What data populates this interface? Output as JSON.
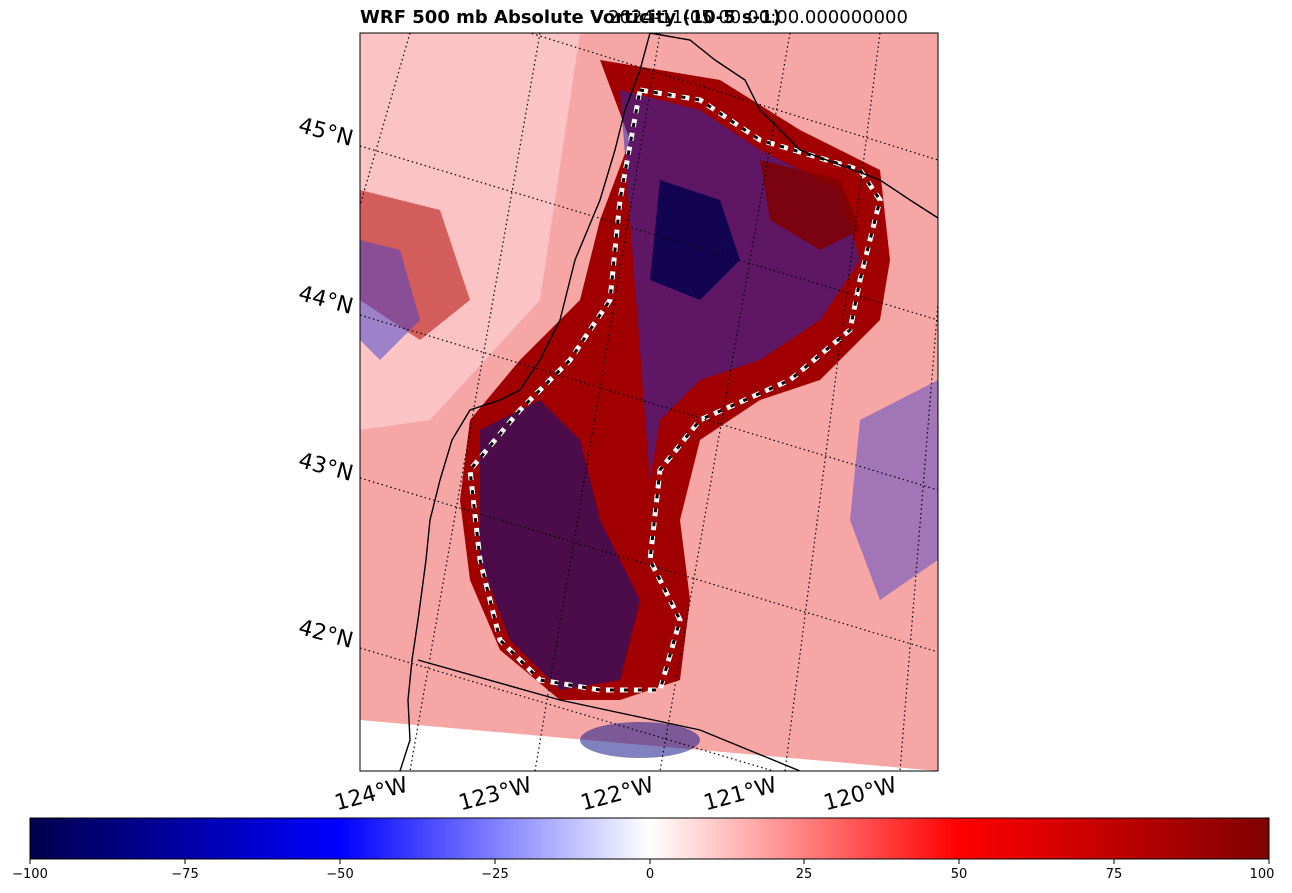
{
  "figure": {
    "title_left": "WRF 500 mb Absolute Vorticity (10-5 s-1)",
    "title_right": "2024-11-05 00:00:00.000000000"
  },
  "map": {
    "lat_labels": [
      "45°N",
      "44°N",
      "43°N",
      "42°N"
    ],
    "lon_labels": [
      "124°W",
      "123°W",
      "122°W",
      "121°W",
      "120°W"
    ],
    "field_colors": {
      "strong_negative": "#00004c",
      "negative": "#0000ff",
      "zero": "#ffffff",
      "positive": "#ff0000",
      "strong_positive": "#800000"
    },
    "coastline_color": "#000000",
    "gridline_style": "dotted"
  },
  "colorbar": {
    "colormap": "seismic",
    "range": [
      -100,
      100
    ],
    "ticks": [
      "−100",
      "−75",
      "−50",
      "−25",
      "0",
      "25",
      "50",
      "75",
      "100"
    ],
    "orientation": "horizontal"
  }
}
